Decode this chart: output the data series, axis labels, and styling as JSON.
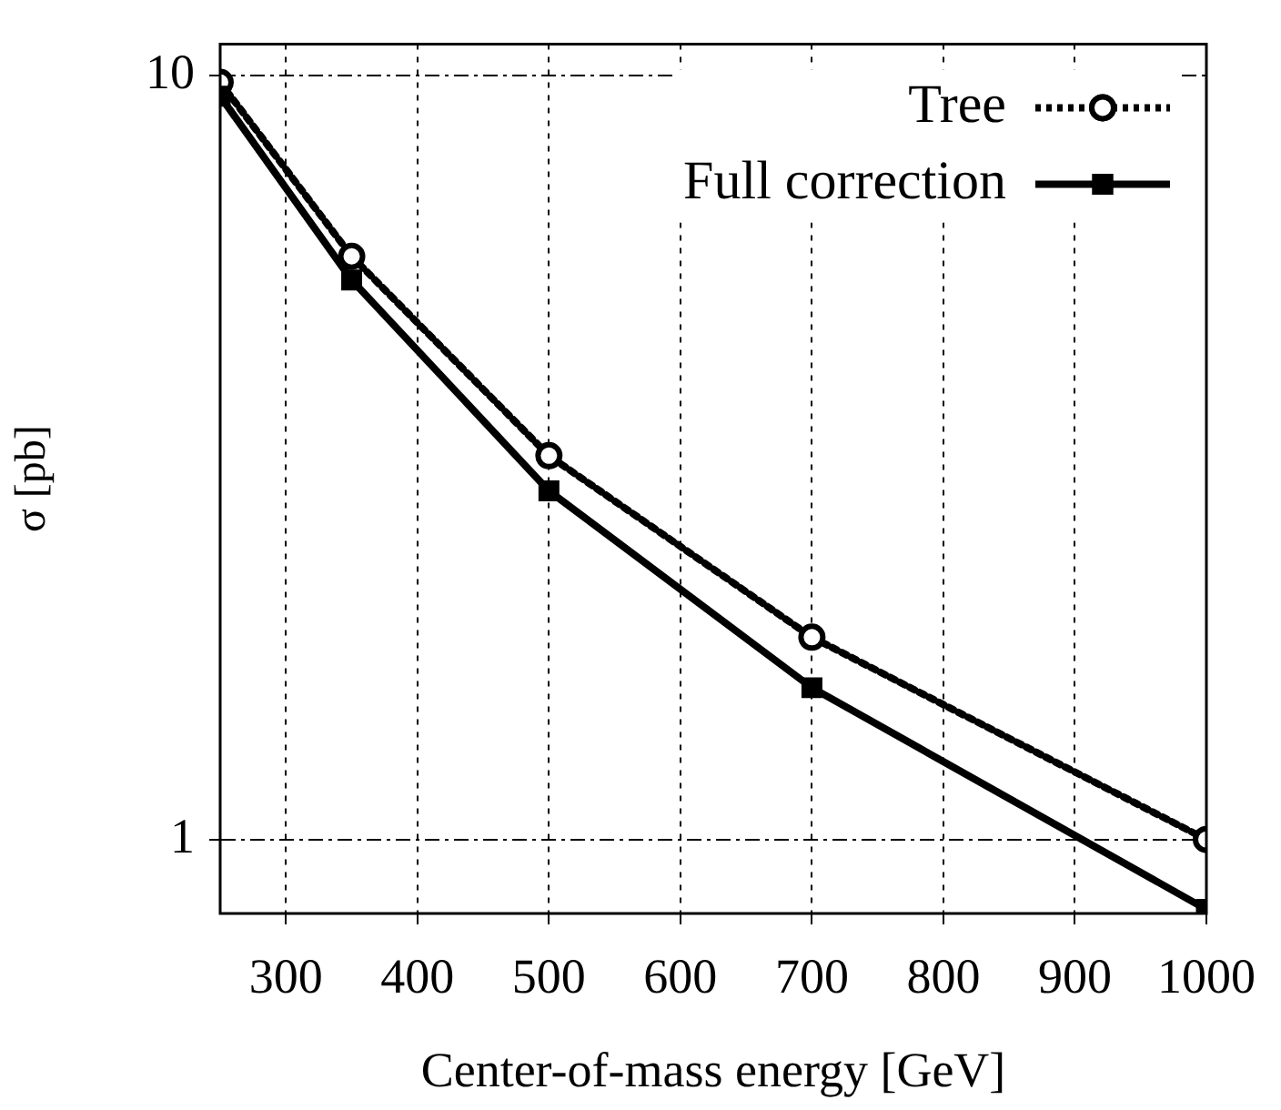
{
  "chart_data": {
    "type": "line",
    "xlabel": "Center-of-mass energy [GeV]",
    "ylabel": "σ [pb]",
    "x": [
      250,
      350,
      500,
      700,
      1000
    ],
    "series": [
      {
        "name": "Tree",
        "color": "#000000",
        "values": [
          9.8,
          5.8,
          3.18,
          1.84,
          1.0
        ],
        "line_style": "dotted",
        "marker": "circle"
      },
      {
        "name": "Full correction",
        "color": "#000000",
        "values": [
          9.4,
          5.4,
          2.86,
          1.58,
          0.81
        ],
        "line_style": "solid",
        "marker": "square"
      }
    ],
    "log": "y",
    "xlim": [
      250,
      1000
    ],
    "xticks": [
      300,
      400,
      500,
      600,
      700,
      800,
      900,
      1000
    ],
    "ylim": [
      0.8,
      11
    ],
    "yticks": [
      1,
      10
    ],
    "grid": true,
    "legend": "top right"
  }
}
